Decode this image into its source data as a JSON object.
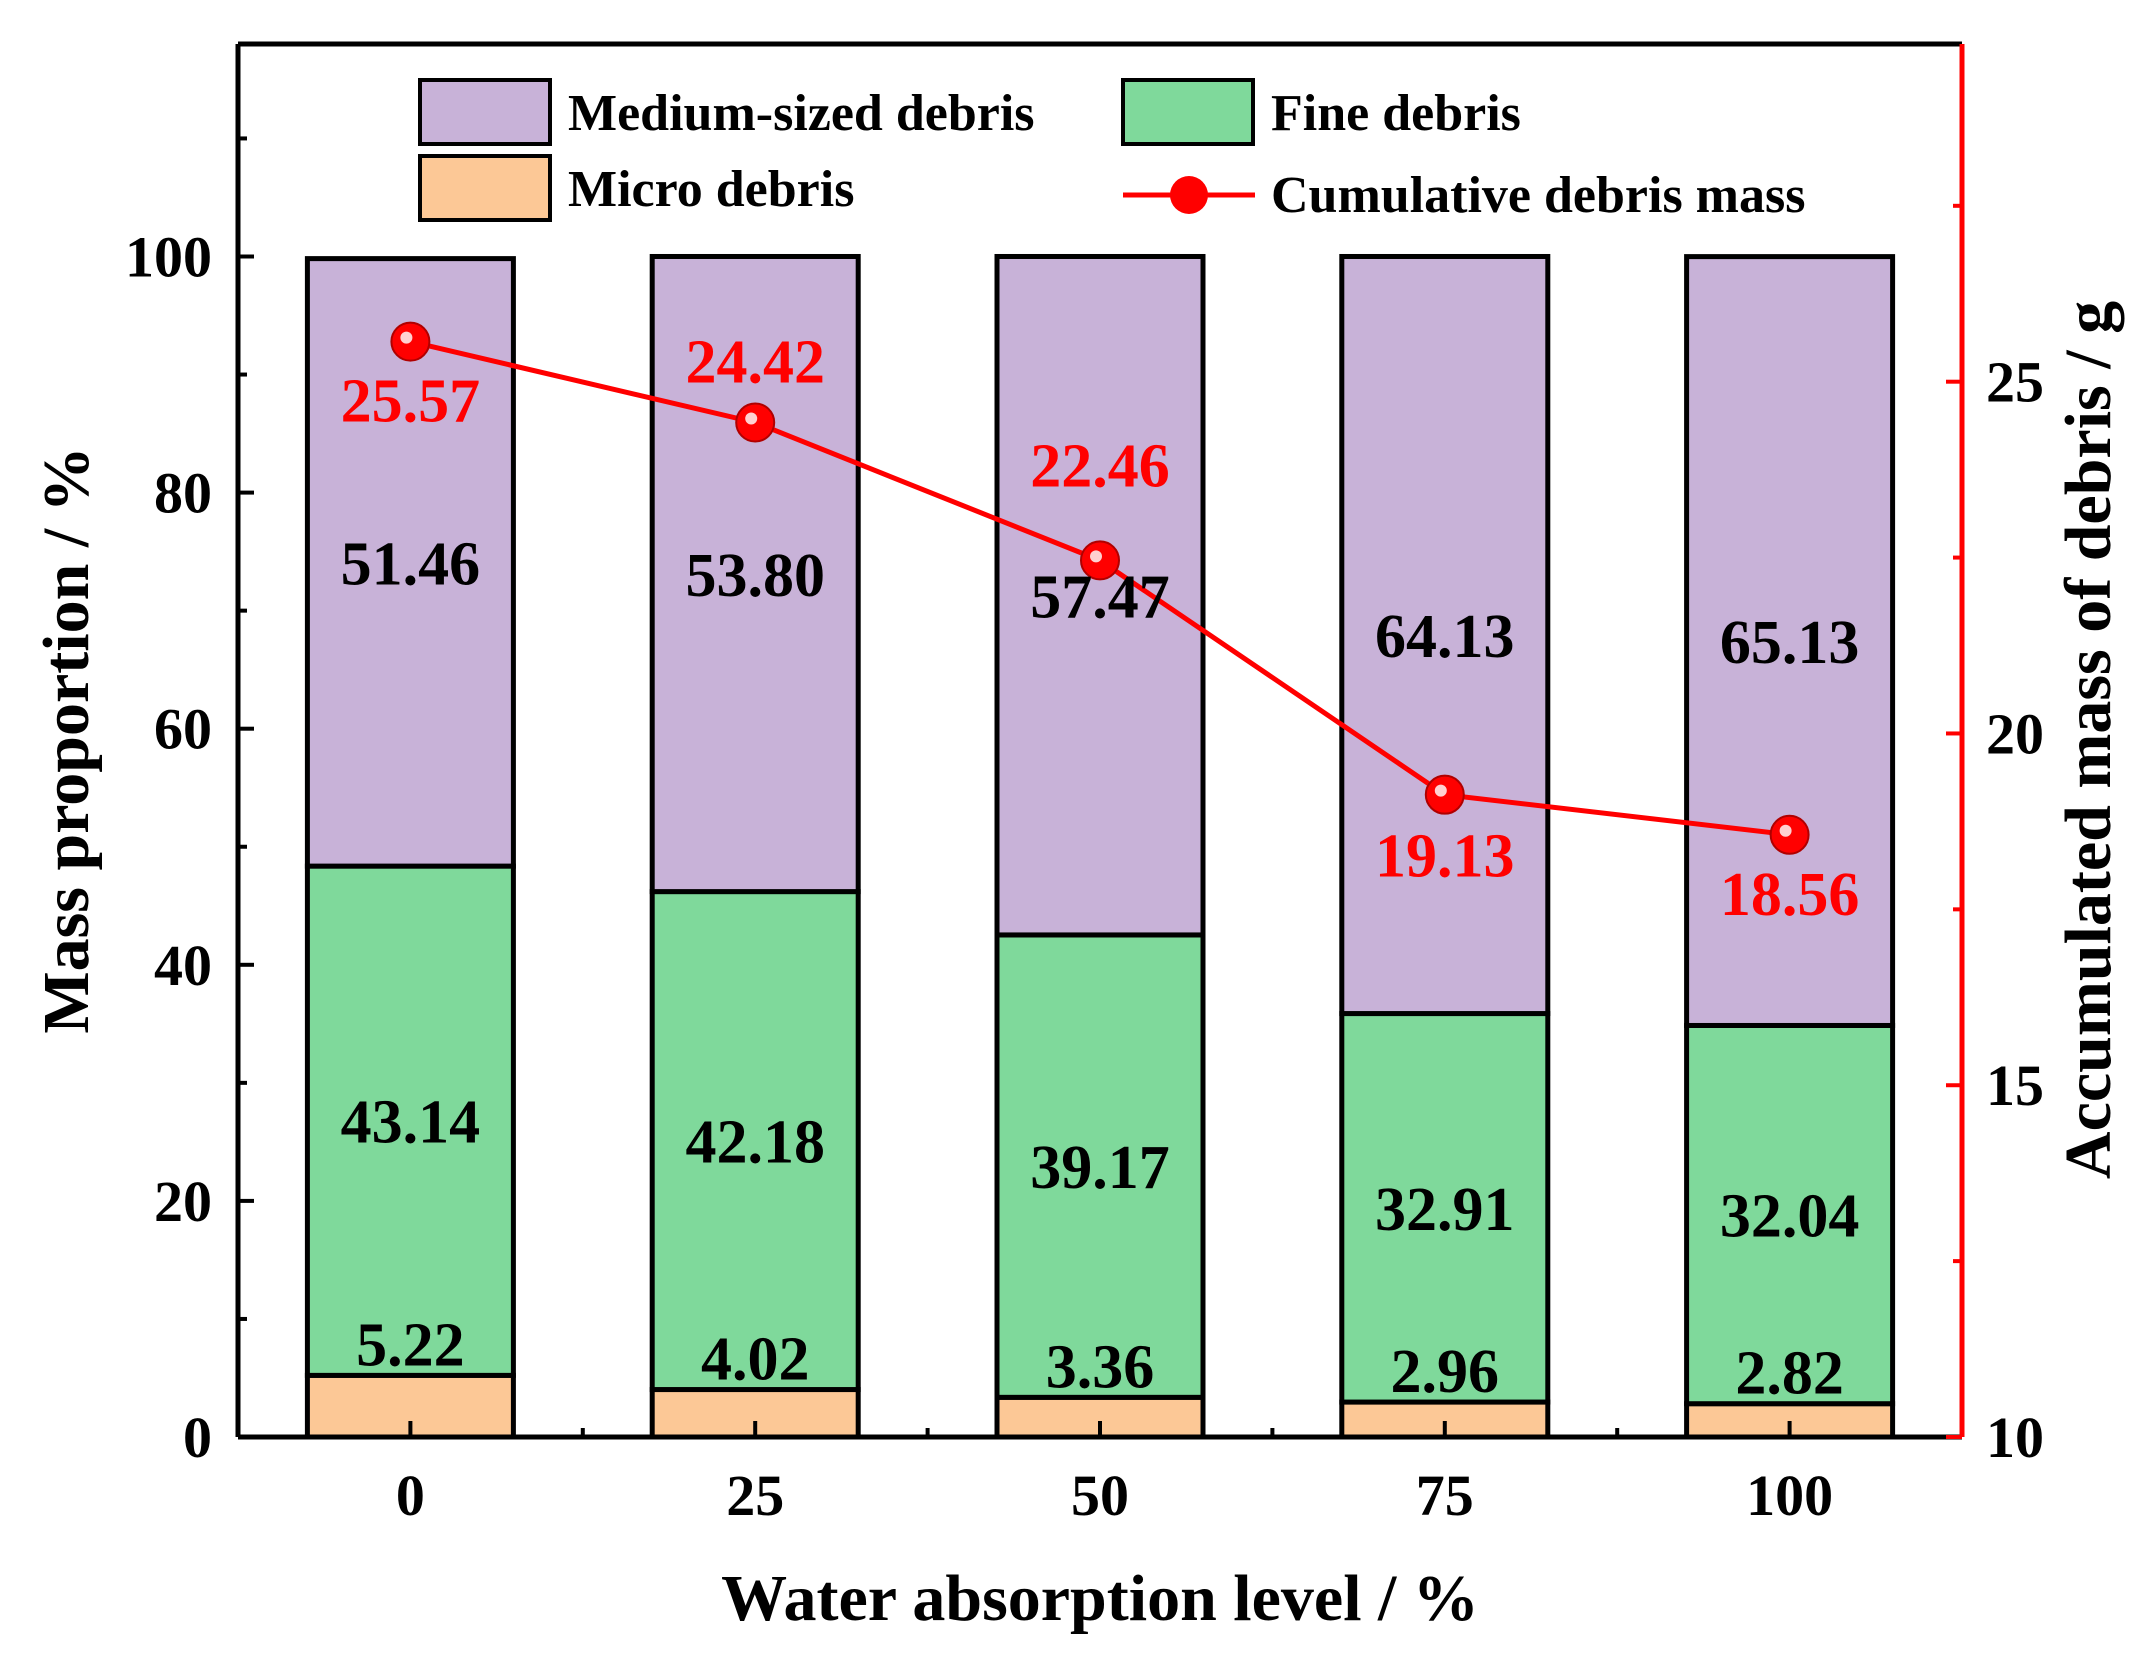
{
  "chart_data": {
    "type": "bar",
    "stacked": true,
    "categories": [
      "0",
      "25",
      "50",
      "75",
      "100"
    ],
    "xlabel": "Water absorption level / %",
    "ylabel": "Mass proportion / %",
    "ylim": [
      0,
      118
    ],
    "y_ticks": [
      "0",
      "20",
      "40",
      "60",
      "80",
      "100"
    ],
    "y2label": "Accumulated mass of debris / g",
    "y2lim": [
      10,
      29.8
    ],
    "y2_ticks": [
      "10",
      "15",
      "20",
      "25"
    ],
    "series": [
      {
        "name": "Micro debris",
        "color": "#fcc896",
        "values": [
          5.22,
          4.02,
          3.36,
          2.96,
          2.82
        ],
        "labels": [
          "5.22",
          "4.02",
          "3.36",
          "2.96",
          "2.82"
        ]
      },
      {
        "name": "Fine debris",
        "color": "#7fd99b",
        "values": [
          43.14,
          42.18,
          39.17,
          32.91,
          32.04
        ],
        "labels": [
          "43.14",
          "42.18",
          "39.17",
          "32.91",
          "32.04"
        ]
      },
      {
        "name": "Medium-sized debris",
        "color": "#c8b2d8",
        "values": [
          51.46,
          53.8,
          57.47,
          64.13,
          65.13
        ],
        "labels": [
          "51.46",
          "53.80",
          "57.47",
          "64.13",
          "65.13"
        ]
      }
    ],
    "line_series": {
      "name": "Cumulative debris mass",
      "axis": "right",
      "color": "#ff0000",
      "values": [
        25.57,
        24.42,
        22.46,
        19.13,
        18.56
      ],
      "labels": [
        "25.57",
        "24.42",
        "22.46",
        "19.13",
        "18.56"
      ]
    },
    "legend": {
      "position": "top",
      "items": [
        "Medium-sized debris",
        "Fine debris",
        "Micro debris",
        "Cumulative debris mass"
      ]
    }
  }
}
